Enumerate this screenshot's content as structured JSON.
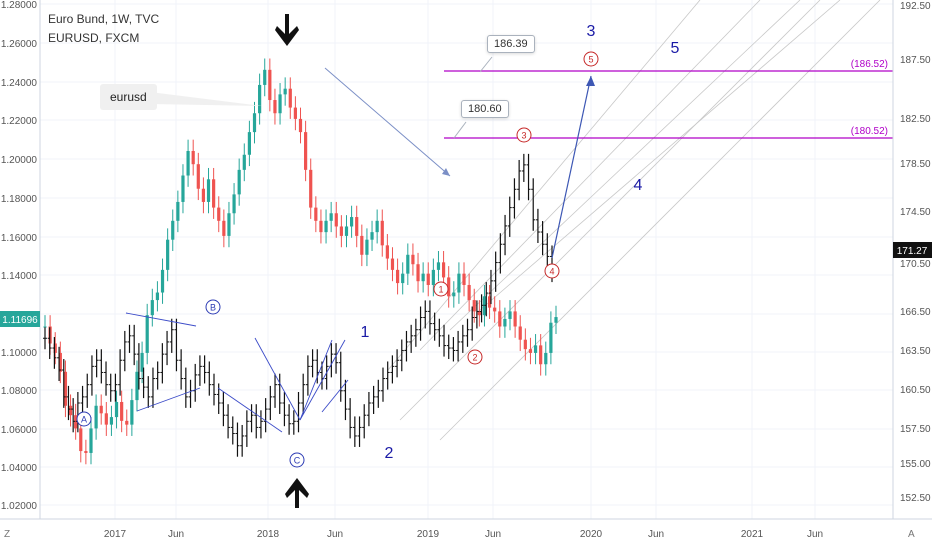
{
  "chart_data": {
    "type": "candlestick",
    "legend": {
      "main_symbol": "Euro Bund, 1W, TVC",
      "compare_symbol": "EURUSD, FXCM"
    },
    "left_axis": {
      "ticks": [
        "1.28000",
        "1.26000",
        "1.24000",
        "1.22000",
        "1.20000",
        "1.18000",
        "1.16000",
        "1.14000",
        "1.12000",
        "1.10000",
        "1.08000",
        "1.06000",
        "1.04000",
        "1.02000"
      ],
      "last_value": "1.11696",
      "range": [
        1.01,
        1.285
      ]
    },
    "right_axis": {
      "ticks": [
        "192.50",
        "187.50",
        "182.50",
        "178.50",
        "174.50",
        "170.50",
        "166.50",
        "163.50",
        "160.50",
        "157.50",
        "155.00",
        "152.50"
      ],
      "last_value": "171.27",
      "range": [
        151.0,
        193.5
      ]
    },
    "x_axis": {
      "ticks": [
        "2017",
        "Jun",
        "2018",
        "Jun",
        "2019",
        "Jun",
        "2020",
        "Jun",
        "2021",
        "Jun"
      ]
    },
    "eurusd_weekly_close": [
      1.112,
      1.103,
      1.098,
      1.088,
      1.07,
      1.065,
      1.058,
      1.046,
      1.045,
      1.058,
      1.07,
      1.066,
      1.06,
      1.064,
      1.072,
      1.062,
      1.06,
      1.073,
      1.088,
      1.098,
      1.118,
      1.126,
      1.13,
      1.142,
      1.158,
      1.168,
      1.178,
      1.192,
      1.205,
      1.198,
      1.185,
      1.178,
      1.19,
      1.175,
      1.168,
      1.16,
      1.172,
      1.182,
      1.195,
      1.203,
      1.215,
      1.225,
      1.24,
      1.248,
      1.232,
      1.225,
      1.235,
      1.238,
      1.228,
      1.222,
      1.215,
      1.195,
      1.175,
      1.168,
      1.162,
      1.168,
      1.172,
      1.165,
      1.16,
      1.165,
      1.17,
      1.16,
      1.15,
      1.158,
      1.162,
      1.168,
      1.155,
      1.148,
      1.142,
      1.135,
      1.14,
      1.15,
      1.145,
      1.136,
      1.14,
      1.134,
      1.142,
      1.146,
      1.138,
      1.128,
      1.13,
      1.14,
      1.134,
      1.126,
      1.12,
      1.118,
      1.128,
      1.122,
      1.12,
      1.112,
      1.116,
      1.12,
      1.112,
      1.105,
      1.1,
      1.098,
      1.102,
      1.092,
      1.098,
      1.114,
      1.117
    ],
    "bund_weekly_close": [
      165.8,
      165.0,
      164.2,
      163.2,
      161.0,
      160.0,
      159.0,
      160.5,
      161.0,
      162.0,
      163.5,
      164.0,
      163.0,
      162.0,
      161.5,
      162.0,
      164.0,
      165.5,
      166.0,
      164.5,
      162.5,
      161.8,
      161.0,
      162.5,
      163.0,
      164.5,
      165.5,
      166.5,
      164.0,
      162.5,
      161.0,
      161.5,
      162.8,
      163.5,
      163.0,
      162.0,
      161.2,
      160.5,
      159.5,
      158.5,
      158.0,
      157.0,
      157.8,
      159.0,
      159.5,
      158.5,
      159.0,
      160.0,
      161.0,
      162.0,
      160.5,
      159.5,
      158.8,
      159.0,
      160.5,
      162.0,
      163.5,
      164.0,
      163.0,
      162.5,
      163.5,
      164.5,
      163.8,
      161.5,
      160.0,
      158.5,
      157.8,
      158.5,
      159.5,
      160.5,
      161.0,
      161.5,
      162.5,
      163.0,
      163.5,
      164.0,
      164.8,
      165.5,
      166.0,
      166.5,
      167.5,
      168.0,
      167.0,
      166.5,
      166.0,
      165.2,
      165.0,
      164.8,
      165.5,
      166.0,
      166.5,
      167.5,
      168.0,
      168.5,
      169.5,
      170.5,
      172.0,
      173.5,
      175.0,
      176.5,
      178.0,
      179.5,
      180.0,
      178.0,
      175.5,
      174.5,
      173.5,
      172.5,
      171.3
    ],
    "horizontal_levels": [
      {
        "label": "(186.52)",
        "value": 186.52,
        "color": "#b000c8"
      },
      {
        "label": "(180.52)",
        "value": 180.52,
        "color": "#b000c8"
      }
    ],
    "price_notes": [
      "186.39",
      "180.60"
    ],
    "callout_text": "eurusd",
    "wave_labels_circled_red": [
      "1",
      "2",
      "3",
      "4",
      "5"
    ],
    "wave_labels_circled_blue": [
      "A",
      "B",
      "C"
    ],
    "wave_labels_plain_blue": [
      "1",
      "2",
      "3",
      "4",
      "5"
    ]
  },
  "colors": {
    "up": "#26a69a",
    "down": "#ef5350",
    "bar_black": "#111111",
    "wave_line": "#3b4bc8",
    "arrow_line": "#7b8fc6",
    "level_line": "#b000c8",
    "grid": "#f0f3fa",
    "channel": "#c8c8c8",
    "price_green": "#26a69a"
  },
  "icons": {
    "corner_left": "Z",
    "corner_right": "A"
  }
}
